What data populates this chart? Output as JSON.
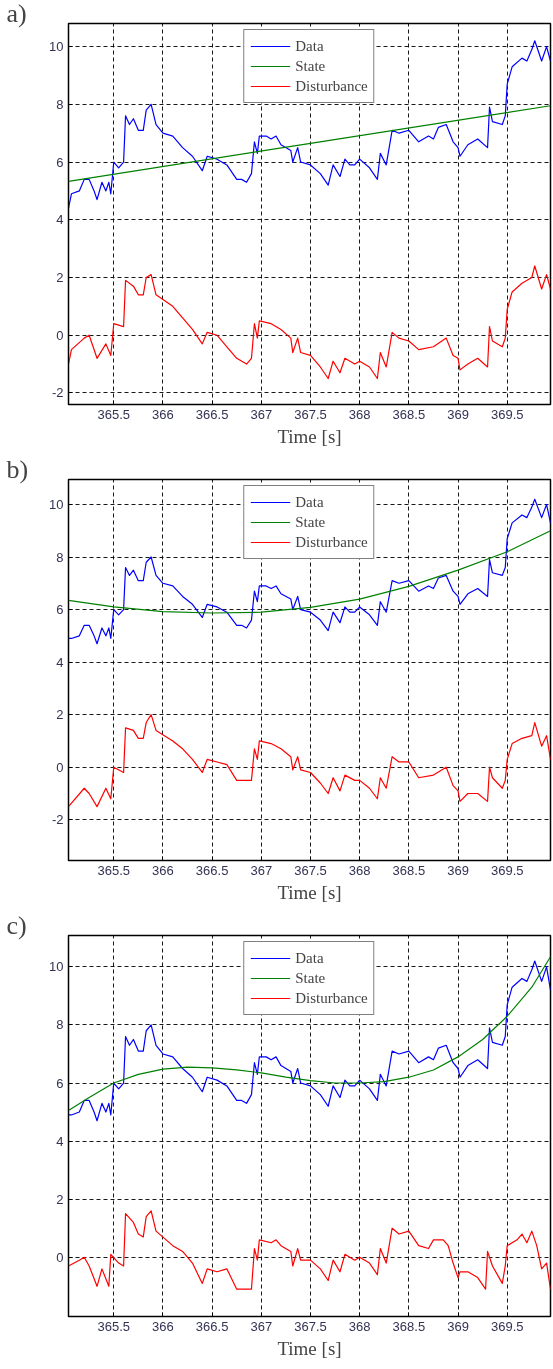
{
  "chart_data": [
    {
      "type": "line",
      "title": "a)",
      "xlabel": "Time [s]",
      "xlim": [
        365.04,
        369.94
      ],
      "ylim": [
        -2.4,
        10.8
      ],
      "xticks": [
        365.5,
        366,
        366.5,
        367,
        367.5,
        368,
        368.5,
        369,
        369.5
      ],
      "yticks": [
        -2,
        0,
        2,
        4,
        6,
        8,
        10
      ],
      "grid": true,
      "legend": "top",
      "series": [
        {
          "name": "Data",
          "color": "#0000ff",
          "x": [
            365.04,
            365.07,
            365.15,
            365.2,
            365.25,
            365.3,
            365.33,
            365.38,
            365.42,
            365.45,
            365.47,
            365.5,
            365.55,
            365.6,
            365.62,
            365.66,
            365.7,
            365.75,
            365.8,
            365.83,
            365.88,
            365.93,
            366.0,
            366.1,
            366.2,
            366.3,
            366.4,
            366.45,
            366.55,
            366.65,
            366.75,
            366.8,
            366.85,
            366.9,
            366.93,
            366.96,
            366.98,
            367.05,
            367.1,
            367.15,
            367.2,
            367.3,
            367.32,
            367.37,
            367.4,
            367.5,
            367.6,
            367.68,
            367.73,
            367.8,
            367.85,
            367.9,
            367.95,
            368.0,
            368.1,
            368.18,
            368.21,
            368.27,
            368.33,
            368.4,
            368.5,
            368.6,
            368.7,
            368.75,
            368.8,
            368.88,
            368.95,
            369.0,
            369.02,
            369.1,
            369.2,
            369.3,
            369.32,
            369.35,
            369.45,
            369.48,
            369.5,
            369.55,
            369.65,
            369.7,
            369.75,
            369.78,
            369.85,
            369.9,
            369.94
          ],
          "values": [
            4.4,
            4.9,
            5.0,
            5.4,
            5.4,
            5.0,
            4.7,
            5.3,
            5.0,
            5.3,
            4.9,
            6.0,
            5.8,
            6.0,
            7.6,
            7.3,
            7.5,
            7.1,
            7.1,
            7.8,
            8.0,
            7.3,
            7.0,
            6.9,
            6.5,
            6.2,
            5.7,
            6.2,
            6.1,
            5.9,
            5.4,
            5.4,
            5.3,
            5.6,
            6.7,
            6.3,
            6.9,
            6.9,
            6.8,
            6.9,
            6.6,
            6.4,
            6.0,
            6.5,
            6.0,
            5.9,
            5.6,
            5.2,
            5.9,
            5.5,
            6.1,
            5.9,
            5.9,
            6.1,
            5.8,
            5.4,
            6.3,
            5.9,
            7.1,
            7.0,
            7.1,
            6.7,
            6.9,
            6.8,
            7.2,
            7.3,
            6.7,
            6.5,
            6.2,
            6.6,
            6.8,
            6.5,
            7.9,
            7.4,
            7.3,
            7.6,
            8.7,
            9.3,
            9.6,
            9.5,
            9.9,
            10.2,
            9.5,
            10.0,
            9.5
          ]
        },
        {
          "name": "State",
          "color": "#008000",
          "x": [
            365.04,
            367.5,
            369.94
          ],
          "values": [
            5.33,
            6.65,
            7.95
          ]
        },
        {
          "name": "Disturbance",
          "color": "#ff0000",
          "x": [
            365.04,
            365.07,
            365.2,
            365.25,
            365.33,
            365.42,
            365.47,
            365.5,
            365.6,
            365.62,
            365.7,
            365.75,
            365.8,
            365.83,
            365.88,
            365.93,
            366.1,
            366.2,
            366.3,
            366.4,
            366.45,
            366.55,
            366.65,
            366.75,
            366.85,
            366.9,
            366.93,
            366.96,
            366.98,
            367.1,
            367.2,
            367.3,
            367.32,
            367.37,
            367.4,
            367.5,
            367.6,
            367.68,
            367.73,
            367.8,
            367.85,
            367.95,
            368.0,
            368.1,
            368.18,
            368.21,
            368.27,
            368.33,
            368.4,
            368.5,
            368.6,
            368.75,
            368.88,
            368.95,
            369.0,
            369.02,
            369.1,
            369.2,
            369.3,
            369.32,
            369.35,
            369.45,
            369.48,
            369.5,
            369.55,
            369.65,
            369.75,
            369.78,
            369.85,
            369.9,
            369.94
          ],
          "values": [
            -1.0,
            -0.5,
            -0.1,
            0.0,
            -0.8,
            -0.3,
            -0.7,
            0.4,
            0.3,
            1.9,
            1.7,
            1.4,
            1.4,
            2.0,
            2.1,
            1.4,
            1.0,
            0.6,
            0.2,
            -0.3,
            0.1,
            0.0,
            -0.4,
            -0.8,
            -1.0,
            -0.8,
            0.4,
            -0.1,
            0.5,
            0.4,
            0.2,
            -0.1,
            -0.6,
            -0.1,
            -0.6,
            -0.7,
            -1.1,
            -1.5,
            -0.9,
            -1.3,
            -0.8,
            -1.0,
            -0.9,
            -1.1,
            -1.5,
            -0.6,
            -1.1,
            0.1,
            -0.1,
            -0.2,
            -0.5,
            -0.4,
            -0.1,
            -0.7,
            -0.8,
            -1.2,
            -1.0,
            -0.8,
            -1.1,
            0.3,
            -0.2,
            -0.4,
            -0.1,
            0.9,
            1.5,
            1.8,
            2.0,
            2.4,
            1.6,
            2.1,
            1.6
          ]
        }
      ]
    },
    {
      "type": "line",
      "title": "b)",
      "xlabel": "Time [s]",
      "xlim": [
        365.04,
        369.94
      ],
      "ylim": [
        -3.55,
        10.95
      ],
      "xticks": [
        365.5,
        366,
        366.5,
        367,
        367.5,
        368,
        368.5,
        369,
        369.5
      ],
      "yticks": [
        -2,
        0,
        2,
        4,
        6,
        8,
        10
      ],
      "grid": true,
      "legend": "top",
      "series": [
        {
          "name": "Data",
          "color": "#0000ff",
          "x": [
            365.04,
            365.07,
            365.15,
            365.2,
            365.25,
            365.3,
            365.33,
            365.38,
            365.42,
            365.45,
            365.47,
            365.5,
            365.55,
            365.6,
            365.62,
            365.66,
            365.7,
            365.75,
            365.8,
            365.83,
            365.88,
            365.93,
            366.0,
            366.1,
            366.2,
            366.3,
            366.4,
            366.45,
            366.55,
            366.65,
            366.75,
            366.8,
            366.85,
            366.9,
            366.93,
            366.96,
            366.98,
            367.05,
            367.1,
            367.15,
            367.2,
            367.3,
            367.32,
            367.37,
            367.4,
            367.5,
            367.6,
            367.68,
            367.73,
            367.8,
            367.85,
            367.9,
            367.95,
            368.0,
            368.1,
            368.18,
            368.21,
            368.27,
            368.33,
            368.4,
            368.5,
            368.6,
            368.7,
            368.75,
            368.8,
            368.88,
            368.95,
            369.0,
            369.02,
            369.1,
            369.2,
            369.3,
            369.32,
            369.35,
            369.45,
            369.48,
            369.5,
            369.55,
            369.65,
            369.7,
            369.75,
            369.78,
            369.85,
            369.9,
            369.94
          ],
          "values": [
            4.9,
            4.9,
            5.0,
            5.4,
            5.4,
            5.0,
            4.7,
            5.3,
            5.0,
            5.3,
            4.9,
            6.0,
            5.8,
            6.0,
            7.6,
            7.3,
            7.5,
            7.1,
            7.1,
            7.8,
            8.0,
            7.3,
            7.0,
            6.9,
            6.5,
            6.2,
            5.7,
            6.2,
            6.1,
            5.9,
            5.4,
            5.4,
            5.3,
            5.6,
            6.7,
            6.3,
            6.9,
            6.9,
            6.8,
            6.9,
            6.6,
            6.4,
            6.0,
            6.5,
            6.0,
            5.9,
            5.6,
            5.2,
            5.9,
            5.5,
            6.1,
            5.9,
            5.9,
            6.1,
            5.8,
            5.4,
            6.3,
            5.9,
            7.1,
            7.0,
            7.1,
            6.7,
            6.9,
            6.8,
            7.2,
            7.3,
            6.7,
            6.5,
            6.2,
            6.6,
            6.8,
            6.5,
            7.9,
            7.4,
            7.3,
            7.6,
            8.7,
            9.3,
            9.6,
            9.5,
            9.9,
            10.2,
            9.5,
            10.0,
            9.3
          ]
        },
        {
          "name": "State",
          "color": "#008000",
          "x": [
            365.04,
            365.5,
            366.0,
            366.5,
            367.0,
            367.5,
            368.0,
            368.5,
            369.0,
            369.5,
            369.94
          ],
          "values": [
            6.35,
            6.1,
            5.92,
            5.87,
            5.9,
            6.08,
            6.4,
            6.88,
            7.5,
            8.2,
            9.0
          ]
        },
        {
          "name": "Disturbance",
          "color": "#ff0000",
          "x": [
            365.04,
            365.2,
            365.25,
            365.33,
            365.42,
            365.47,
            365.5,
            365.6,
            365.62,
            365.7,
            365.75,
            365.8,
            365.83,
            365.88,
            365.93,
            366.1,
            366.2,
            366.3,
            366.4,
            366.45,
            366.55,
            366.65,
            366.75,
            366.85,
            366.9,
            366.93,
            366.96,
            366.98,
            367.1,
            367.2,
            367.3,
            367.32,
            367.37,
            367.4,
            367.5,
            367.6,
            367.68,
            367.73,
            367.8,
            367.85,
            367.95,
            368.0,
            368.1,
            368.18,
            368.21,
            368.27,
            368.33,
            368.4,
            368.5,
            368.6,
            368.75,
            368.88,
            368.95,
            369.0,
            369.02,
            369.1,
            369.2,
            369.3,
            369.32,
            369.35,
            369.45,
            369.48,
            369.5,
            369.55,
            369.65,
            369.75,
            369.78,
            369.85,
            369.9,
            369.94
          ],
          "values": [
            -1.5,
            -0.8,
            -1.0,
            -1.5,
            -0.8,
            -1.2,
            0.0,
            -0.2,
            1.5,
            1.4,
            1.1,
            1.1,
            1.7,
            2.0,
            1.4,
            1.0,
            0.7,
            0.3,
            -0.2,
            0.3,
            0.2,
            0.1,
            -0.5,
            -0.5,
            -0.5,
            0.7,
            0.3,
            1.0,
            0.9,
            0.7,
            0.4,
            -0.1,
            0.4,
            -0.1,
            -0.2,
            -0.6,
            -1.0,
            -0.4,
            -0.9,
            -0.3,
            -0.5,
            -0.5,
            -0.8,
            -1.2,
            -0.4,
            -0.8,
            0.4,
            0.2,
            0.2,
            -0.4,
            -0.3,
            0.0,
            -0.7,
            -0.9,
            -1.3,
            -1.0,
            -1.0,
            -1.3,
            0.0,
            -0.4,
            -0.8,
            -0.5,
            0.3,
            0.9,
            1.1,
            1.2,
            1.7,
            0.8,
            1.2,
            0.3
          ]
        }
      ]
    },
    {
      "type": "line",
      "title": "c)",
      "xlabel": "Time [s]",
      "xlim": [
        365.04,
        369.94
      ],
      "ylim": [
        -2.04,
        11.08
      ],
      "xticks": [
        365.5,
        366,
        366.5,
        367,
        367.5,
        368,
        368.5,
        369,
        369.5
      ],
      "yticks": [
        0,
        2,
        4,
        6,
        8,
        10
      ],
      "grid": true,
      "legend": "top",
      "series": [
        {
          "name": "Data",
          "color": "#0000ff",
          "x": [
            365.04,
            365.07,
            365.15,
            365.2,
            365.25,
            365.3,
            365.33,
            365.38,
            365.42,
            365.45,
            365.47,
            365.5,
            365.55,
            365.6,
            365.62,
            365.66,
            365.7,
            365.75,
            365.8,
            365.83,
            365.88,
            365.93,
            366.0,
            366.1,
            366.2,
            366.3,
            366.4,
            366.45,
            366.55,
            366.65,
            366.75,
            366.8,
            366.85,
            366.9,
            366.93,
            366.96,
            366.98,
            367.05,
            367.1,
            367.15,
            367.2,
            367.3,
            367.32,
            367.37,
            367.4,
            367.5,
            367.6,
            367.68,
            367.73,
            367.8,
            367.85,
            367.9,
            367.95,
            368.0,
            368.1,
            368.18,
            368.21,
            368.27,
            368.33,
            368.4,
            368.5,
            368.6,
            368.7,
            368.75,
            368.8,
            368.88,
            368.95,
            369.0,
            369.02,
            369.1,
            369.2,
            369.3,
            369.32,
            369.35,
            369.45,
            369.48,
            369.5,
            369.55,
            369.65,
            369.7,
            369.75,
            369.78,
            369.85,
            369.9,
            369.94
          ],
          "values": [
            4.9,
            4.9,
            5.0,
            5.4,
            5.4,
            5.0,
            4.7,
            5.3,
            5.0,
            5.3,
            4.9,
            6.0,
            5.8,
            6.0,
            7.6,
            7.3,
            7.5,
            7.1,
            7.1,
            7.8,
            8.0,
            7.3,
            7.0,
            6.9,
            6.5,
            6.2,
            5.7,
            6.2,
            6.1,
            5.9,
            5.4,
            5.4,
            5.3,
            5.6,
            6.7,
            6.3,
            6.9,
            6.9,
            6.8,
            6.9,
            6.6,
            6.4,
            6.0,
            6.5,
            6.0,
            5.9,
            5.6,
            5.2,
            5.9,
            5.5,
            6.1,
            5.9,
            5.9,
            6.1,
            5.8,
            5.4,
            6.3,
            5.9,
            7.1,
            7.0,
            7.1,
            6.7,
            6.9,
            6.8,
            7.2,
            7.3,
            6.7,
            6.5,
            6.2,
            6.6,
            6.8,
            6.5,
            7.9,
            7.4,
            7.3,
            7.6,
            8.7,
            9.3,
            9.6,
            9.5,
            9.9,
            10.2,
            9.5,
            10.0,
            9.2
          ]
        },
        {
          "name": "State",
          "color": "#008000",
          "x": [
            365.04,
            365.25,
            365.5,
            365.75,
            366.0,
            366.25,
            366.5,
            366.75,
            367.0,
            367.25,
            367.5,
            367.75,
            368.0,
            368.25,
            368.5,
            368.75,
            369.0,
            369.25,
            369.5,
            369.75,
            369.94
          ],
          "values": [
            5.05,
            5.5,
            6.0,
            6.3,
            6.48,
            6.55,
            6.52,
            6.45,
            6.35,
            6.2,
            6.08,
            6.0,
            6.0,
            6.05,
            6.2,
            6.45,
            6.9,
            7.5,
            8.3,
            9.3,
            10.35
          ]
        },
        {
          "name": "Disturbance",
          "color": "#ff0000",
          "x": [
            365.04,
            365.15,
            365.2,
            365.25,
            365.33,
            365.38,
            365.45,
            365.47,
            365.55,
            365.6,
            365.62,
            365.7,
            365.75,
            365.8,
            365.83,
            365.88,
            365.93,
            366.1,
            366.2,
            366.3,
            366.4,
            366.45,
            366.55,
            366.65,
            366.75,
            366.85,
            366.9,
            366.93,
            366.96,
            366.98,
            367.1,
            367.15,
            367.2,
            367.3,
            367.32,
            367.37,
            367.4,
            367.5,
            367.6,
            367.68,
            367.73,
            367.8,
            367.85,
            367.95,
            368.0,
            368.1,
            368.18,
            368.21,
            368.27,
            368.33,
            368.4,
            368.5,
            368.6,
            368.7,
            368.75,
            368.85,
            368.9,
            368.95,
            369.0,
            369.02,
            369.1,
            369.2,
            369.28,
            369.3,
            369.35,
            369.45,
            369.48,
            369.5,
            369.6,
            369.65,
            369.7,
            369.75,
            369.8,
            369.85,
            369.9,
            369.94
          ],
          "values": [
            -0.3,
            -0.1,
            0.0,
            -0.3,
            -1.0,
            -0.4,
            -1.0,
            0.1,
            -0.2,
            -0.3,
            1.5,
            1.2,
            0.8,
            0.7,
            1.4,
            1.6,
            0.9,
            0.4,
            0.2,
            -0.2,
            -0.9,
            -0.4,
            -0.5,
            -0.4,
            -1.1,
            -1.1,
            -1.1,
            0.3,
            -0.1,
            0.6,
            0.5,
            0.6,
            0.4,
            0.2,
            -0.3,
            0.3,
            -0.1,
            -0.1,
            -0.4,
            -0.8,
            -0.1,
            -0.5,
            0.1,
            -0.1,
            0.0,
            -0.2,
            -0.6,
            0.3,
            -0.2,
            1.0,
            0.8,
            0.9,
            0.4,
            0.3,
            0.6,
            0.6,
            0.4,
            -0.2,
            -0.7,
            -0.5,
            -0.5,
            -0.7,
            -1.1,
            0.2,
            -0.3,
            -0.9,
            -0.3,
            0.4,
            0.6,
            0.8,
            0.5,
            0.9,
            0.4,
            -0.4,
            -0.2,
            -1.1
          ]
        }
      ]
    }
  ]
}
